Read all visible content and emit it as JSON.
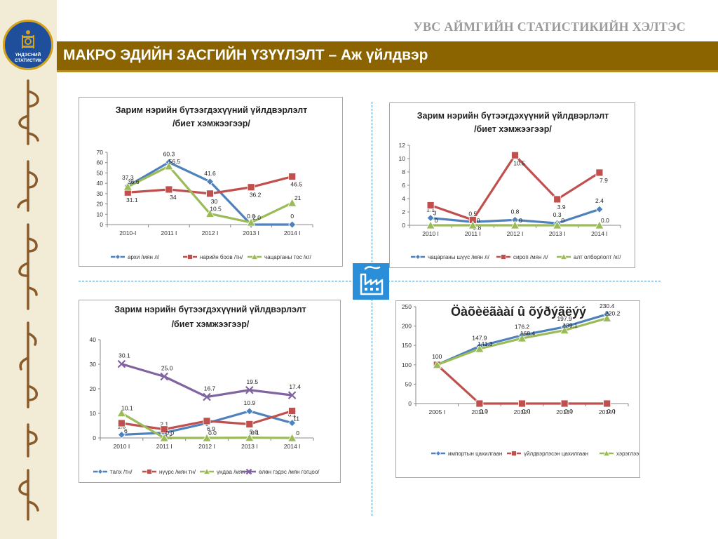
{
  "header": {
    "org_name": "УВС АЙМГИЙН СТАТИСТИКИЙН ХЭЛТЭС",
    "title": "МАКРО ЭДИЙН ЗАСГИЙН ҮЗҮҮЛЭЛТ – Аж үйлдвэр",
    "logo_text_line1": "ҮНДЭСНИЙ",
    "logo_text_line2": "СТАТИСТИК"
  },
  "colors": {
    "title_bar": "#8b6400",
    "left_strip": "#f2ecd6",
    "accent_blue": "#2a8fd8",
    "series_blue": "#4f81bd",
    "series_red": "#c0504d",
    "series_green": "#9bbb59",
    "series_purple": "#8064a2"
  },
  "icons": [
    "national-statistics-logo-icon",
    "mongolian-script-icon",
    "factory-icon"
  ],
  "chart_data": [
    {
      "type": "line",
      "title_lines": [
        "Зарим нэрийн бүтээгдэхүүний үйлдвэрлэлт",
        "/биет хэмжээгээр/"
      ],
      "categories": [
        "2010-I",
        "2011 I",
        "2012 I",
        "2013 I",
        "2014 I"
      ],
      "ylim": [
        0,
        70
      ],
      "yticks": [
        0,
        10,
        20,
        30,
        40,
        50,
        60,
        70
      ],
      "series": [
        {
          "name": "архи /мян л/",
          "color": "#4f81bd",
          "marker": "diamond",
          "values": [
            37.3,
            60.3,
            41.6,
            0,
            0
          ],
          "labels": [
            "37.3",
            "60.3",
            "41.6",
            "0.0",
            "0"
          ]
        },
        {
          "name": "нарийн боов /тн/",
          "color": "#c0504d",
          "marker": "square",
          "values": [
            31.1,
            34,
            30,
            36.2,
            46.5
          ],
          "labels": [
            "31.1",
            "34",
            "30",
            "36.2",
            "46.5"
          ]
        },
        {
          "name": "чацарганы тос /кг/",
          "color": "#9bbb59",
          "marker": "triangle",
          "values": [
            36.6,
            56.5,
            10.5,
            2.0,
            21
          ],
          "labels": [
            "36.6",
            "56.5",
            "10.5",
            "2.0",
            "21"
          ]
        }
      ],
      "legend_position": "bottom",
      "grid": false
    },
    {
      "type": "line",
      "title_lines": [
        "Зарим нэрийн бүтээгдэхүүний үйлдвэрлэлт",
        "/биет хэмжээгээр/"
      ],
      "categories": [
        "2010 I",
        "2011 I",
        "2012 I",
        "2013 I",
        "2014 I"
      ],
      "ylim": [
        0,
        12
      ],
      "yticks": [
        0,
        2,
        4,
        6,
        8,
        10,
        12
      ],
      "series": [
        {
          "name": "чацарганы шүүс /мян л/",
          "color": "#4f81bd",
          "marker": "diamond",
          "values": [
            1.1,
            0.5,
            0.8,
            0.3,
            2.4
          ],
          "labels": [
            "1.1",
            "0.5",
            "0.8",
            "0.3",
            "2.4"
          ]
        },
        {
          "name": "сироп /мян л/",
          "color": "#c0504d",
          "marker": "square",
          "values": [
            3,
            0.8,
            10.5,
            3.9,
            7.9
          ],
          "labels": [
            "3",
            "0.8",
            "10.5",
            "3.9",
            "7.9"
          ]
        },
        {
          "name": "алт олборлолт /кг/",
          "color": "#9bbb59",
          "marker": "triangle",
          "values": [
            0,
            0,
            0,
            0,
            0
          ],
          "labels": [
            "0",
            "0",
            "0",
            "0",
            "0.0"
          ]
        }
      ],
      "legend_position": "bottom",
      "grid": false
    },
    {
      "type": "line",
      "title_lines": [
        "Зарим нэрийн бүтээгдэхүүний үйлдвэрлэлт",
        "/биет хэмжээгээр/"
      ],
      "categories": [
        "2010 I",
        "2011 I",
        "2012 I",
        "2013 I",
        "2014 I"
      ],
      "ylim": [
        0,
        40
      ],
      "yticks": [
        0,
        10,
        20,
        30,
        40
      ],
      "series": [
        {
          "name": "талх /тн/",
          "color": "#4f81bd",
          "marker": "diamond",
          "values": [
            1.3,
            2.1,
            6,
            10.9,
            6.1
          ],
          "labels": [
            "1.3",
            "2.1",
            "",
            "10.9",
            "6.1"
          ]
        },
        {
          "name": "нүүрс /мян тн/",
          "color": "#c0504d",
          "marker": "square",
          "values": [
            6,
            3.5,
            6.9,
            5.6,
            11
          ],
          "labels": [
            "6",
            "3.5",
            "6.9",
            "5.6",
            "11"
          ]
        },
        {
          "name": "үндаа /мян л/",
          "color": "#9bbb59",
          "marker": "triangle",
          "values": [
            10.1,
            0,
            0,
            0.1,
            0
          ],
          "labels": [
            "10.1",
            "0.0",
            "0.0",
            "0.1",
            "0"
          ]
        },
        {
          "name": "өлөн гэдэс /мян гогцоо/",
          "color": "#8064a2",
          "marker": "x",
          "values": [
            30.1,
            25.0,
            16.7,
            19.5,
            17.4
          ],
          "labels": [
            "30.1",
            "25.0",
            "16.7",
            "19.5",
            "17.4"
          ]
        }
      ],
      "legend_position": "bottom",
      "grid": false
    },
    {
      "type": "line",
      "title_lines": [
        "Öàõèëãààí û õýðýãëýý"
      ],
      "categories": [
        "2005 I",
        "2011 I",
        "2012 I",
        "2013 I",
        "2014 I"
      ],
      "ylim": [
        0,
        250
      ],
      "yticks": [
        0,
        50,
        100,
        150,
        200,
        250
      ],
      "series": [
        {
          "name": "импортын цахилгаан",
          "color": "#4f81bd",
          "marker": "diamond",
          "values": [
            100,
            147.9,
            176.2,
            197.9,
            230.4
          ],
          "labels": [
            "100",
            "147.9",
            "176.2",
            "197.9",
            "230.4"
          ]
        },
        {
          "name": "үйлдвэрлэсэн цахилгаан",
          "color": "#c0504d",
          "marker": "square",
          "values": [
            100,
            0,
            0,
            0,
            0
          ],
          "labels": [
            "",
            "0.0",
            "0.0",
            "0.0",
            "0.0"
          ]
        },
        {
          "name": "хэрэглээ",
          "color": "#9bbb59",
          "marker": "triangle",
          "values": [
            100,
            141.3,
            168.4,
            189.1,
            220.2
          ],
          "labels": [
            "",
            "141.3",
            "168.4",
            "189.1",
            "220.2"
          ]
        }
      ],
      "legend_position": "bottom",
      "grid": false
    }
  ]
}
